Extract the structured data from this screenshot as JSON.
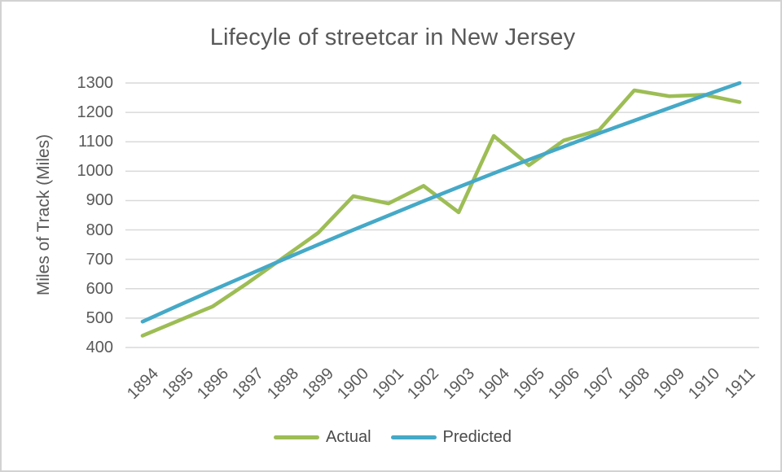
{
  "chart_data": {
    "type": "line",
    "title": "Lifecyle of streetcar in New Jersey",
    "xlabel": "",
    "ylabel": "Miles of Track (Miles)",
    "categories": [
      "1894",
      "1895",
      "1896",
      "1897",
      "1898",
      "1899",
      "1900",
      "1901",
      "1902",
      "1903",
      "1904",
      "1905",
      "1906",
      "1907",
      "1908",
      "1909",
      "1910",
      "1911"
    ],
    "series": [
      {
        "name": "Actual",
        "color": "#9dbd55",
        "values": [
          440,
          490,
          540,
          620,
          705,
          790,
          915,
          890,
          950,
          860,
          1120,
          1020,
          1105,
          1140,
          1275,
          1255,
          1260,
          1235
        ]
      },
      {
        "name": "Predicted",
        "color": "#45a9c7",
        "values": [
          488,
          542,
          595,
          647,
          699,
          750,
          800,
          849,
          898,
          946,
          993,
          1039,
          1084,
          1129,
          1172,
          1215,
          1258,
          1300
        ]
      }
    ],
    "ylim": [
      400,
      1300
    ],
    "ytick_step": 100,
    "grid": "horizontal",
    "legend_position": "bottom"
  },
  "styles": {
    "text_color": "#595959",
    "grid_color": "#d9d9d9",
    "border_color": "#d2d2d2",
    "background": "#ffffff"
  }
}
